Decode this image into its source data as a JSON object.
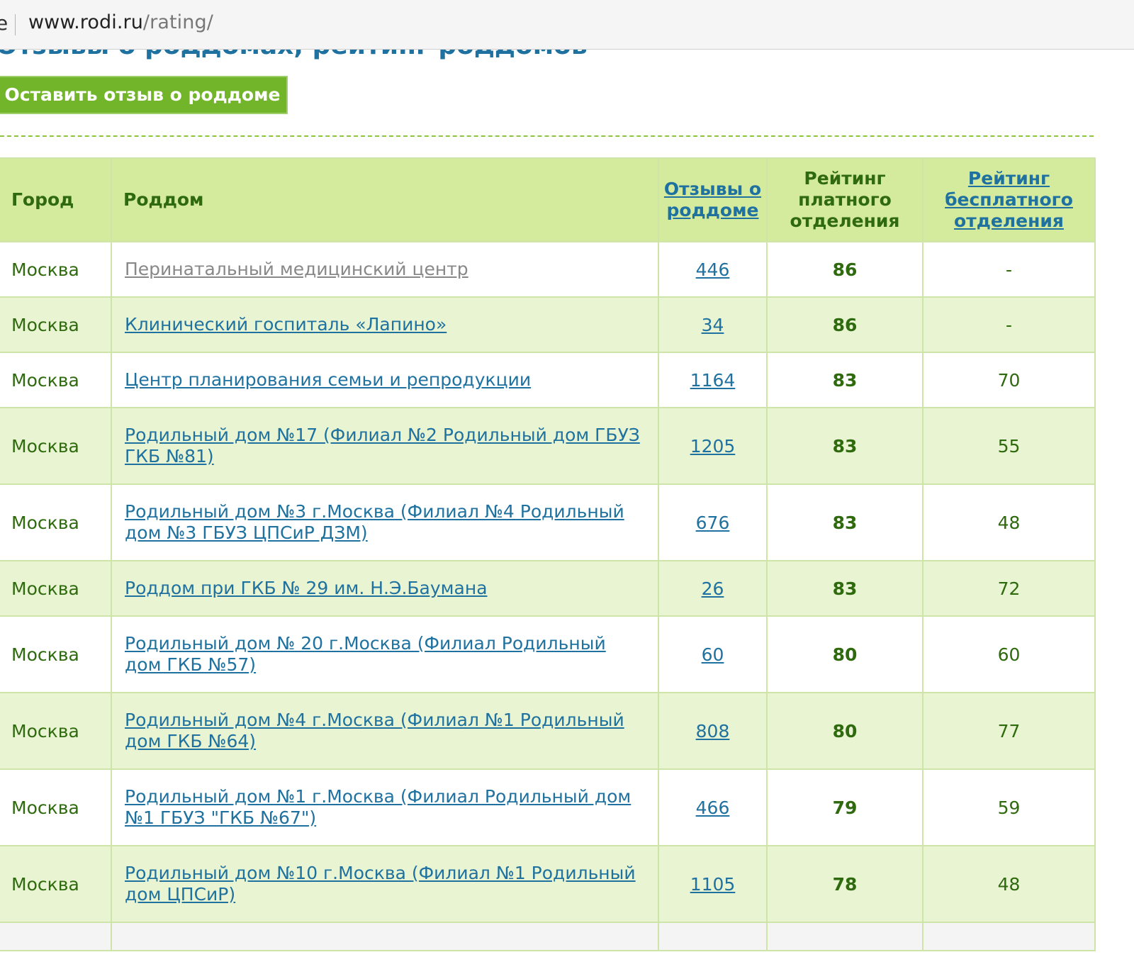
{
  "browser": {
    "edge_char": "e",
    "url_host": "www.rodi.ru",
    "url_path": "/rating/"
  },
  "page": {
    "title": "Отзывы о роддомах, рейтинг роддомов",
    "review_button": "Оставить отзыв о роддоме"
  },
  "table": {
    "headers": {
      "city": "Город",
      "hospital": "Роддом",
      "reviews": "Отзывы о роддоме",
      "paid_rating": "Рейтинг платного отделения",
      "free_rating": "Рейтинг бесплатного отделения"
    },
    "rows": [
      {
        "city": "Москва",
        "name": "Перинатальный медицинский центр",
        "reviews": "446",
        "paid": "86",
        "free": "-"
      },
      {
        "city": "Москва",
        "name": "Клинический госпиталь «Лапино»",
        "reviews": "34",
        "paid": "86",
        "free": "-"
      },
      {
        "city": "Москва",
        "name": "Центр планирования семьи и репродукции",
        "reviews": "1164",
        "paid": "83",
        "free": "70"
      },
      {
        "city": "Москва",
        "name": "Родильный дом №17 (Филиал №2 Родильный дом ГБУЗ ГКБ №81)",
        "reviews": "1205",
        "paid": "83",
        "free": "55"
      },
      {
        "city": "Москва",
        "name": "Родильный дом №3 г.Москва (Филиал №4 Родильный дом №3 ГБУЗ ЦПСиР ДЗМ)",
        "reviews": "676",
        "paid": "83",
        "free": "48"
      },
      {
        "city": "Москва",
        "name": "Роддом при ГКБ № 29 им. Н.Э.Баумана",
        "reviews": "26",
        "paid": "83",
        "free": "72"
      },
      {
        "city": "Москва",
        "name": "Родильный дом № 20 г.Москва (Филиал Родильный дом ГКБ №57)",
        "reviews": "60",
        "paid": "80",
        "free": "60"
      },
      {
        "city": "Москва",
        "name": "Родильный дом №4 г.Москва (Филиал №1 Родильный дом ГКБ №64)",
        "reviews": "808",
        "paid": "80",
        "free": "77"
      },
      {
        "city": "Москва",
        "name": "Родильный дом №1 г.Москва (Филиал Родильный дом №1 ГБУЗ \"ГКБ №67\")",
        "reviews": "466",
        "paid": "79",
        "free": "59"
      },
      {
        "city": "Москва",
        "name": "Родильный дом №10 г.Москва (Филиал №1 Родильный дом ЦПСиР)",
        "reviews": "1105",
        "paid": "78",
        "free": "48"
      }
    ]
  },
  "colors": {
    "link": "#1f72a0",
    "visited_link": "#888888",
    "text_green": "#2f6a0e",
    "header_bg": "#d4eb9e",
    "row_alt_bg": "#e9f4d2",
    "button_bg": "#72b52a"
  }
}
